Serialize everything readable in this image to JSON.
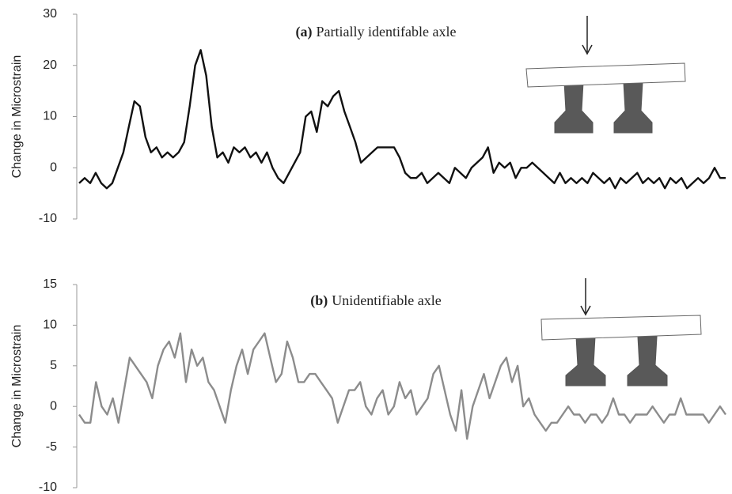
{
  "chart_data": [
    {
      "type": "line",
      "label": "(a)",
      "title": "Partially identifable  axle",
      "y_label": "Change in Microstrain",
      "color": "#111111",
      "ylim": [
        -10,
        30
      ],
      "yticks": [
        -10,
        0,
        10,
        20,
        30
      ],
      "values": [
        -3,
        -2,
        -3,
        -1,
        -3,
        -4,
        -3,
        0,
        3,
        8,
        13,
        12,
        6,
        3,
        4,
        2,
        3,
        2,
        3,
        5,
        12,
        20,
        23,
        18,
        8,
        2,
        3,
        1,
        4,
        3,
        4,
        2,
        3,
        1,
        3,
        0,
        -2,
        -3,
        -1,
        1,
        3,
        10,
        11,
        7,
        13,
        12,
        14,
        15,
        11,
        8,
        5,
        1,
        2,
        3,
        4,
        4,
        4,
        4,
        2,
        -1,
        -2,
        -2,
        -1,
        -3,
        -2,
        -1,
        -2,
        -3,
        0,
        -1,
        -2,
        0,
        1,
        2,
        4,
        -1,
        1,
        0,
        1,
        -2,
        0,
        0,
        1,
        0,
        -1,
        -2,
        -3,
        -1,
        -3,
        -2,
        -3,
        -2,
        -3,
        -1,
        -2,
        -3,
        -2,
        -4,
        -2,
        -3,
        -2,
        -1,
        -3,
        -2,
        -3,
        -2,
        -4,
        -2,
        -3,
        -2,
        -4,
        -3,
        -2,
        -3,
        -2,
        0,
        -2,
        -2
      ]
    },
    {
      "type": "line",
      "label": "(b)",
      "title": "Unidentifiable  axle",
      "y_label": "Change in Microstrain",
      "color": "#8c8c8c",
      "ylim": [
        -10,
        15
      ],
      "yticks": [
        -10,
        -5,
        0,
        5,
        10,
        15
      ],
      "values": [
        -1,
        -2,
        -2,
        3,
        0,
        -1,
        1,
        -2,
        2,
        6,
        5,
        4,
        3,
        1,
        5,
        7,
        8,
        6,
        9,
        3,
        7,
        5,
        6,
        3,
        2,
        0,
        -2,
        2,
        5,
        7,
        4,
        7,
        8,
        9,
        6,
        3,
        4,
        8,
        6,
        3,
        3,
        4,
        4,
        3,
        2,
        1,
        -2,
        0,
        2,
        2,
        3,
        0,
        -1,
        1,
        2,
        -1,
        0,
        3,
        1,
        2,
        -1,
        0,
        1,
        4,
        5,
        2,
        -1,
        -3,
        2,
        -4,
        0,
        2,
        4,
        1,
        3,
        5,
        6,
        3,
        5,
        0,
        1,
        -1,
        -2,
        -3,
        -2,
        -2,
        -1,
        0,
        -1,
        -1,
        -2,
        -1,
        -1,
        -2,
        -1,
        1,
        -1,
        -1,
        -2,
        -1,
        -1,
        -1,
        0,
        -1,
        -2,
        -1,
        -1,
        1,
        -1,
        -1,
        -1,
        -1,
        -2,
        -1,
        0,
        -1
      ]
    }
  ]
}
